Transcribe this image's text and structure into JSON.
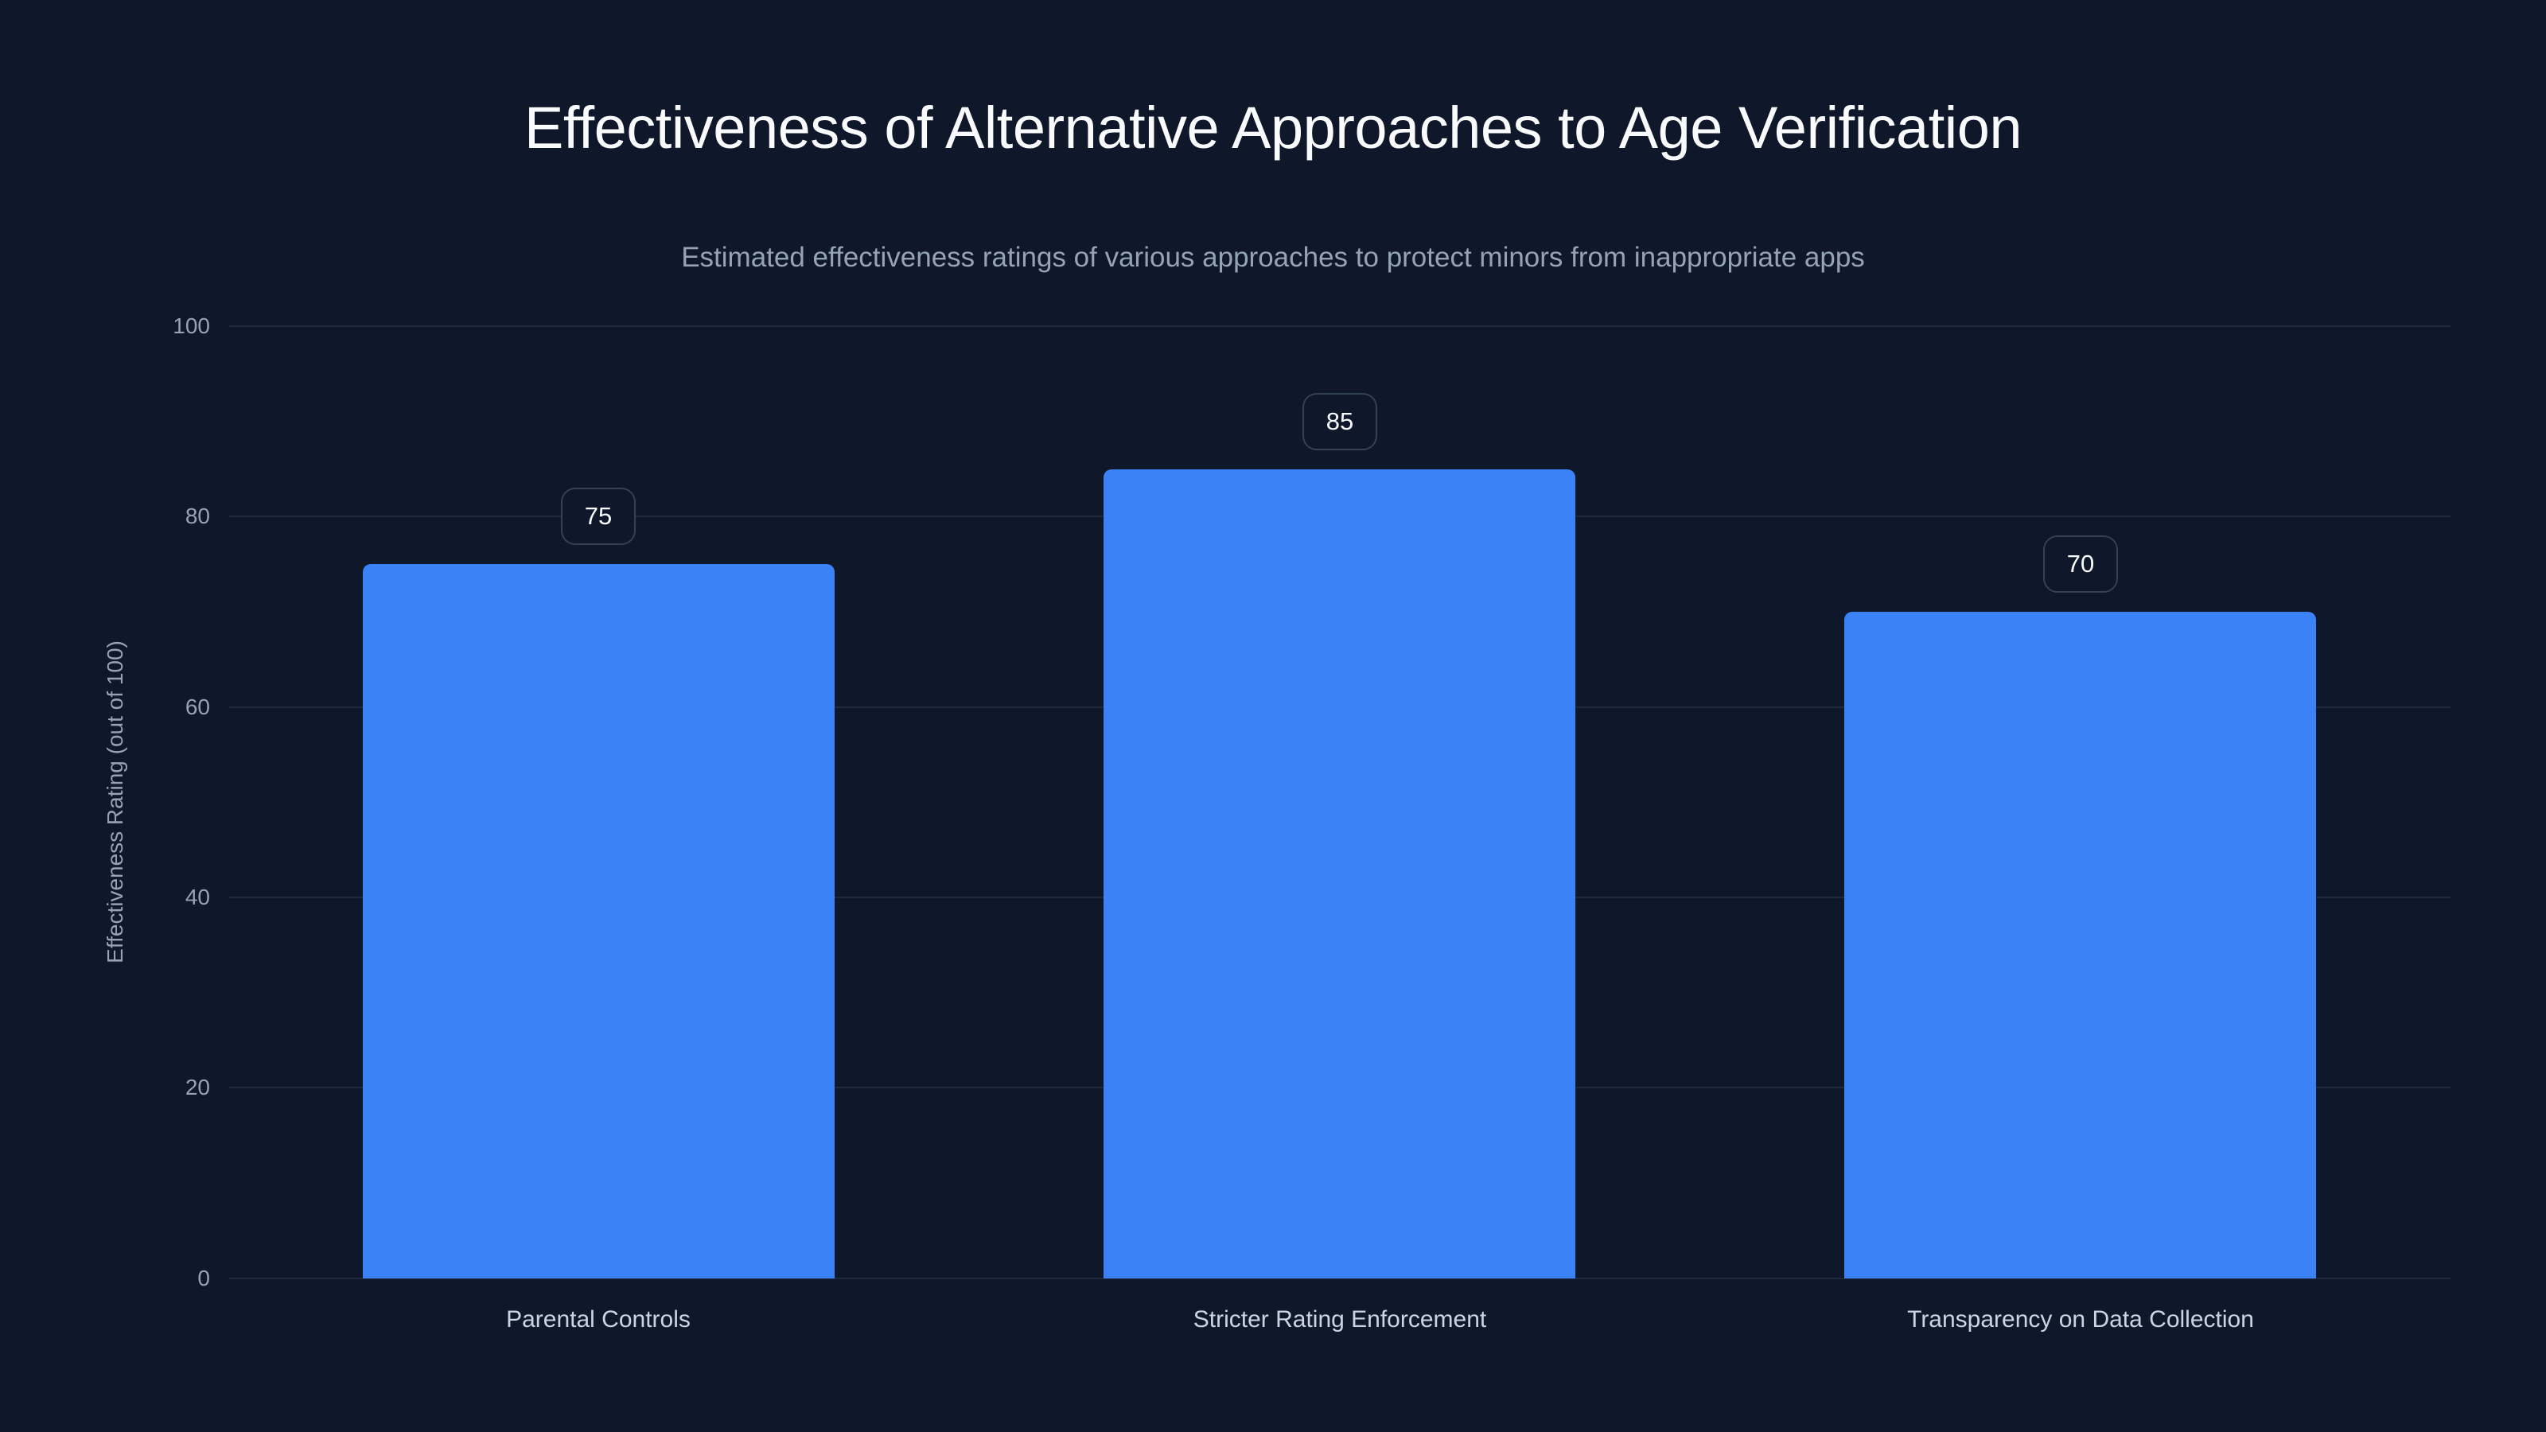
{
  "chart_data": {
    "type": "bar",
    "title": "Effectiveness of Alternative Approaches to Age Verification",
    "subtitle": "Estimated effectiveness ratings of various approaches to protect minors from inappropriate apps",
    "xlabel": "",
    "ylabel": "Effectiveness Rating (out of 100)",
    "categories": [
      "Parental Controls",
      "Stricter Rating Enforcement",
      "Transparency on Data Collection"
    ],
    "values": [
      75,
      85,
      70
    ],
    "data_labels": [
      "75",
      "85",
      "70"
    ],
    "ylim": [
      0,
      100
    ],
    "yticks": [
      "0",
      "20",
      "40",
      "60",
      "80",
      "100"
    ],
    "grid": true,
    "legend": null,
    "bar_color": "#3b82f6"
  },
  "colors": {
    "background": "#0f172a",
    "bar": "#3b82f6",
    "grid": "#1e293b",
    "title": "#f8fafc",
    "muted_text": "#94a3b8",
    "label_text": "#cbd5e1",
    "badge_border": "#334155"
  }
}
